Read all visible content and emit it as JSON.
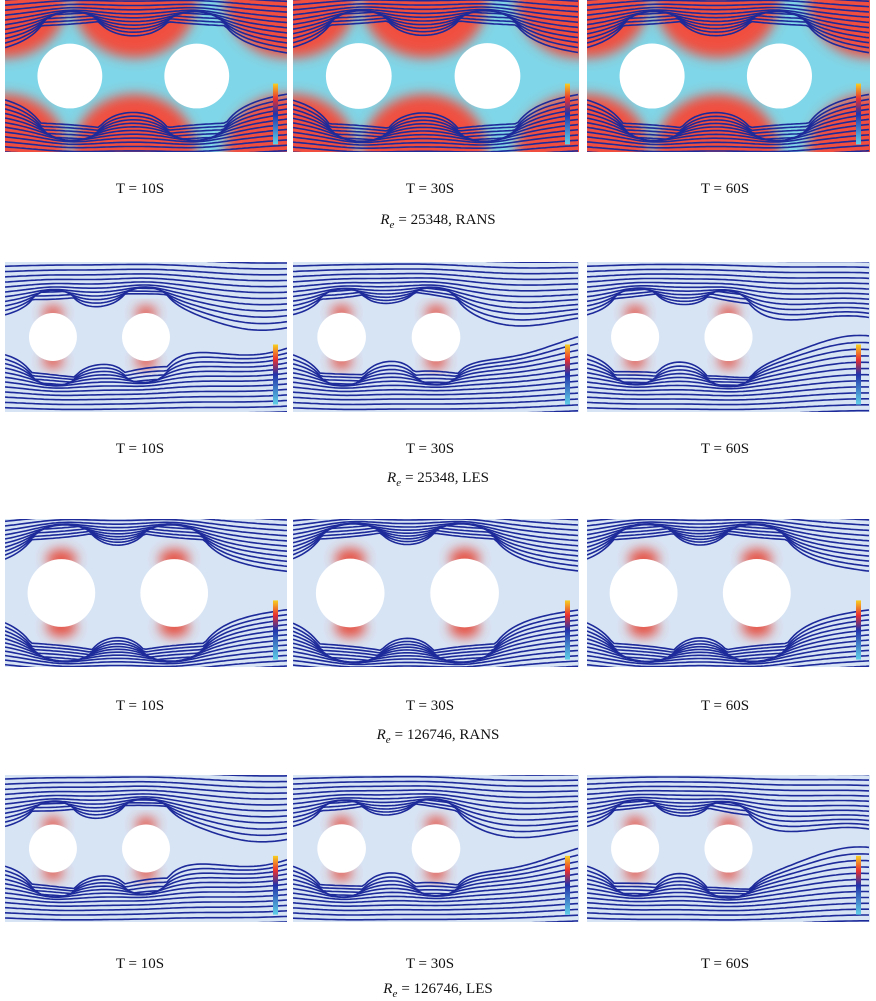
{
  "figure": {
    "rows": [
      {
        "panels": [
          {
            "label": "T = 10S"
          },
          {
            "label": "T = 30S"
          },
          {
            "label": "T = 60S"
          }
        ],
        "caption": {
          "symbol": "R",
          "subscript": "e",
          "text": "= 25348, RANS"
        }
      },
      {
        "panels": [
          {
            "label": "T = 10S"
          },
          {
            "label": "T = 30S"
          },
          {
            "label": "T = 60S"
          }
        ],
        "caption": {
          "symbol": "R",
          "subscript": "e",
          "text": "= 25348, LES"
        }
      },
      {
        "panels": [
          {
            "label": "T = 10S"
          },
          {
            "label": "T = 30S"
          },
          {
            "label": "T = 60S"
          }
        ],
        "caption": {
          "symbol": "R",
          "subscript": "e",
          "text": "= 126746, RANS"
        }
      },
      {
        "panels": [
          {
            "label": "T = 10S"
          },
          {
            "label": "T = 30S"
          },
          {
            "label": "T = 60S"
          }
        ],
        "caption": {
          "symbol": "R",
          "subscript": "e",
          "text": "= 126746, LES"
        }
      }
    ]
  }
}
